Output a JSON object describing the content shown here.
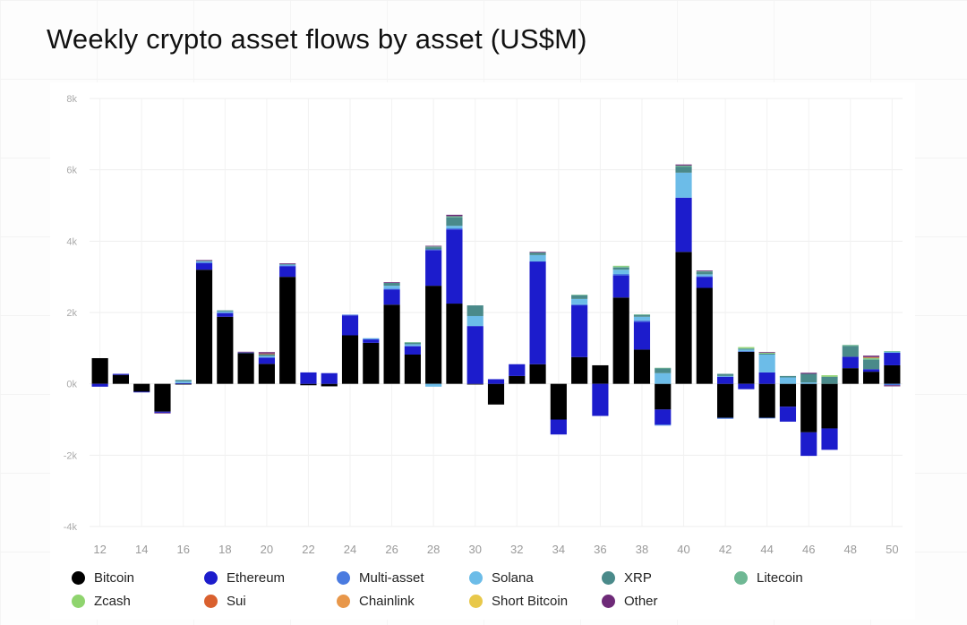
{
  "chart_data": {
    "type": "bar",
    "stacked": true,
    "title": "Weekly crypto asset flows by asset (US$M)",
    "xlabel": "",
    "ylabel": "",
    "ylim": [
      -4000,
      8000
    ],
    "yticks": [
      -4000,
      -2000,
      0,
      2000,
      4000,
      6000,
      8000
    ],
    "ytick_labels": [
      "-4k",
      "-2k",
      "0k",
      "2k",
      "4k",
      "6k",
      "8k"
    ],
    "categories": [
      12,
      13,
      14,
      15,
      16,
      17,
      18,
      19,
      20,
      21,
      22,
      23,
      24,
      25,
      26,
      27,
      28,
      29,
      30,
      31,
      32,
      33,
      34,
      35,
      36,
      37,
      38,
      39,
      40,
      41,
      42,
      43,
      44,
      45,
      46,
      47,
      48,
      49,
      50
    ],
    "xtick_labels": [
      "12",
      "14",
      "16",
      "18",
      "20",
      "22",
      "24",
      "26",
      "28",
      "30",
      "32",
      "34",
      "36",
      "38",
      "40",
      "42",
      "44",
      "46",
      "48",
      "50"
    ],
    "grid": true,
    "legend_position": "bottom",
    "series": [
      {
        "name": "Bitcoin",
        "color": "#000000",
        "values": [
          720,
          250,
          -220,
          -780,
          -20,
          3200,
          1880,
          870,
          560,
          3000,
          -40,
          -70,
          1360,
          1150,
          2220,
          820,
          2750,
          2250,
          -20,
          -580,
          220,
          550,
          -1000,
          750,
          520,
          2420,
          960,
          -720,
          3700,
          2690,
          -950,
          900,
          -950,
          -640,
          -1360,
          -1250,
          440,
          340,
          520
        ]
      },
      {
        "name": "Ethereum",
        "color": "#1c1ccc",
        "values": [
          -80,
          30,
          -20,
          -30,
          20,
          180,
          100,
          0,
          170,
          300,
          320,
          300,
          560,
          100,
          420,
          230,
          1000,
          2080,
          1620,
          130,
          330,
          2880,
          -420,
          1450,
          -900,
          620,
          780,
          -420,
          1520,
          310,
          200,
          -150,
          320,
          -420,
          -660,
          -600,
          320,
          70,
          350
        ]
      },
      {
        "name": "Multi-asset",
        "color": "#4a7be0",
        "values": [
          0,
          0,
          0,
          0,
          0,
          30,
          20,
          10,
          20,
          20,
          0,
          0,
          20,
          10,
          30,
          20,
          20,
          30,
          0,
          0,
          0,
          0,
          0,
          30,
          0,
          40,
          40,
          -30,
          0,
          20,
          -30,
          20,
          -20,
          0,
          0,
          0,
          0,
          0,
          -40
        ]
      },
      {
        "name": "Solana",
        "color": "#6cbce8",
        "values": [
          0,
          0,
          0,
          0,
          50,
          20,
          30,
          0,
          30,
          20,
          0,
          0,
          0,
          20,
          80,
          40,
          -80,
          70,
          280,
          0,
          0,
          180,
          0,
          150,
          0,
          120,
          100,
          300,
          700,
          50,
          20,
          40,
          500,
          180,
          40,
          0,
          0,
          0,
          30
        ]
      },
      {
        "name": "XRP",
        "color": "#4a8a8a",
        "values": [
          0,
          0,
          0,
          0,
          40,
          20,
          30,
          0,
          50,
          20,
          0,
          0,
          0,
          0,
          80,
          40,
          60,
          240,
          300,
          0,
          0,
          70,
          0,
          100,
          0,
          60,
          50,
          130,
          170,
          70,
          60,
          20,
          30,
          40,
          240,
          200,
          300,
          260,
          0
        ]
      },
      {
        "name": "Litecoin",
        "color": "#6fb894",
        "values": [
          0,
          0,
          0,
          0,
          0,
          0,
          0,
          0,
          0,
          0,
          0,
          0,
          0,
          0,
          0,
          20,
          20,
          30,
          0,
          0,
          0,
          0,
          0,
          20,
          0,
          30,
          20,
          20,
          30,
          20,
          0,
          20,
          0,
          0,
          0,
          0,
          30,
          40,
          20
        ]
      },
      {
        "name": "Zcash",
        "color": "#8fd46e",
        "values": [
          0,
          0,
          0,
          0,
          0,
          0,
          0,
          0,
          0,
          0,
          0,
          0,
          0,
          0,
          0,
          0,
          0,
          0,
          0,
          0,
          0,
          0,
          0,
          0,
          0,
          20,
          0,
          0,
          0,
          0,
          0,
          30,
          20,
          0,
          0,
          40,
          0,
          20,
          0
        ]
      },
      {
        "name": "Sui",
        "color": "#d9602e",
        "values": [
          0,
          0,
          0,
          0,
          0,
          0,
          0,
          0,
          20,
          0,
          0,
          0,
          0,
          0,
          0,
          0,
          0,
          0,
          0,
          0,
          0,
          0,
          0,
          0,
          0,
          0,
          0,
          0,
          0,
          0,
          0,
          0,
          0,
          0,
          0,
          0,
          0,
          20,
          0
        ]
      },
      {
        "name": "Chainlink",
        "color": "#e8974a",
        "values": [
          0,
          0,
          0,
          0,
          0,
          0,
          0,
          0,
          0,
          0,
          0,
          0,
          0,
          0,
          0,
          0,
          0,
          0,
          0,
          0,
          0,
          0,
          0,
          0,
          0,
          0,
          0,
          0,
          0,
          0,
          0,
          0,
          0,
          0,
          0,
          0,
          0,
          0,
          0
        ]
      },
      {
        "name": "Short Bitcoin",
        "color": "#e8c84a",
        "values": [
          0,
          0,
          0,
          0,
          0,
          0,
          0,
          0,
          0,
          0,
          0,
          0,
          0,
          0,
          0,
          0,
          0,
          0,
          0,
          0,
          0,
          0,
          0,
          0,
          0,
          0,
          0,
          0,
          0,
          0,
          0,
          0,
          0,
          0,
          0,
          0,
          0,
          0,
          0
        ]
      },
      {
        "name": "Other",
        "color": "#6e2a78",
        "values": [
          0,
          0,
          0,
          -20,
          0,
          20,
          0,
          20,
          40,
          20,
          0,
          0,
          0,
          0,
          20,
          0,
          20,
          40,
          0,
          0,
          0,
          20,
          0,
          0,
          0,
          0,
          0,
          0,
          30,
          20,
          0,
          0,
          20,
          0,
          30,
          0,
          0,
          40,
          -30
        ]
      }
    ]
  }
}
